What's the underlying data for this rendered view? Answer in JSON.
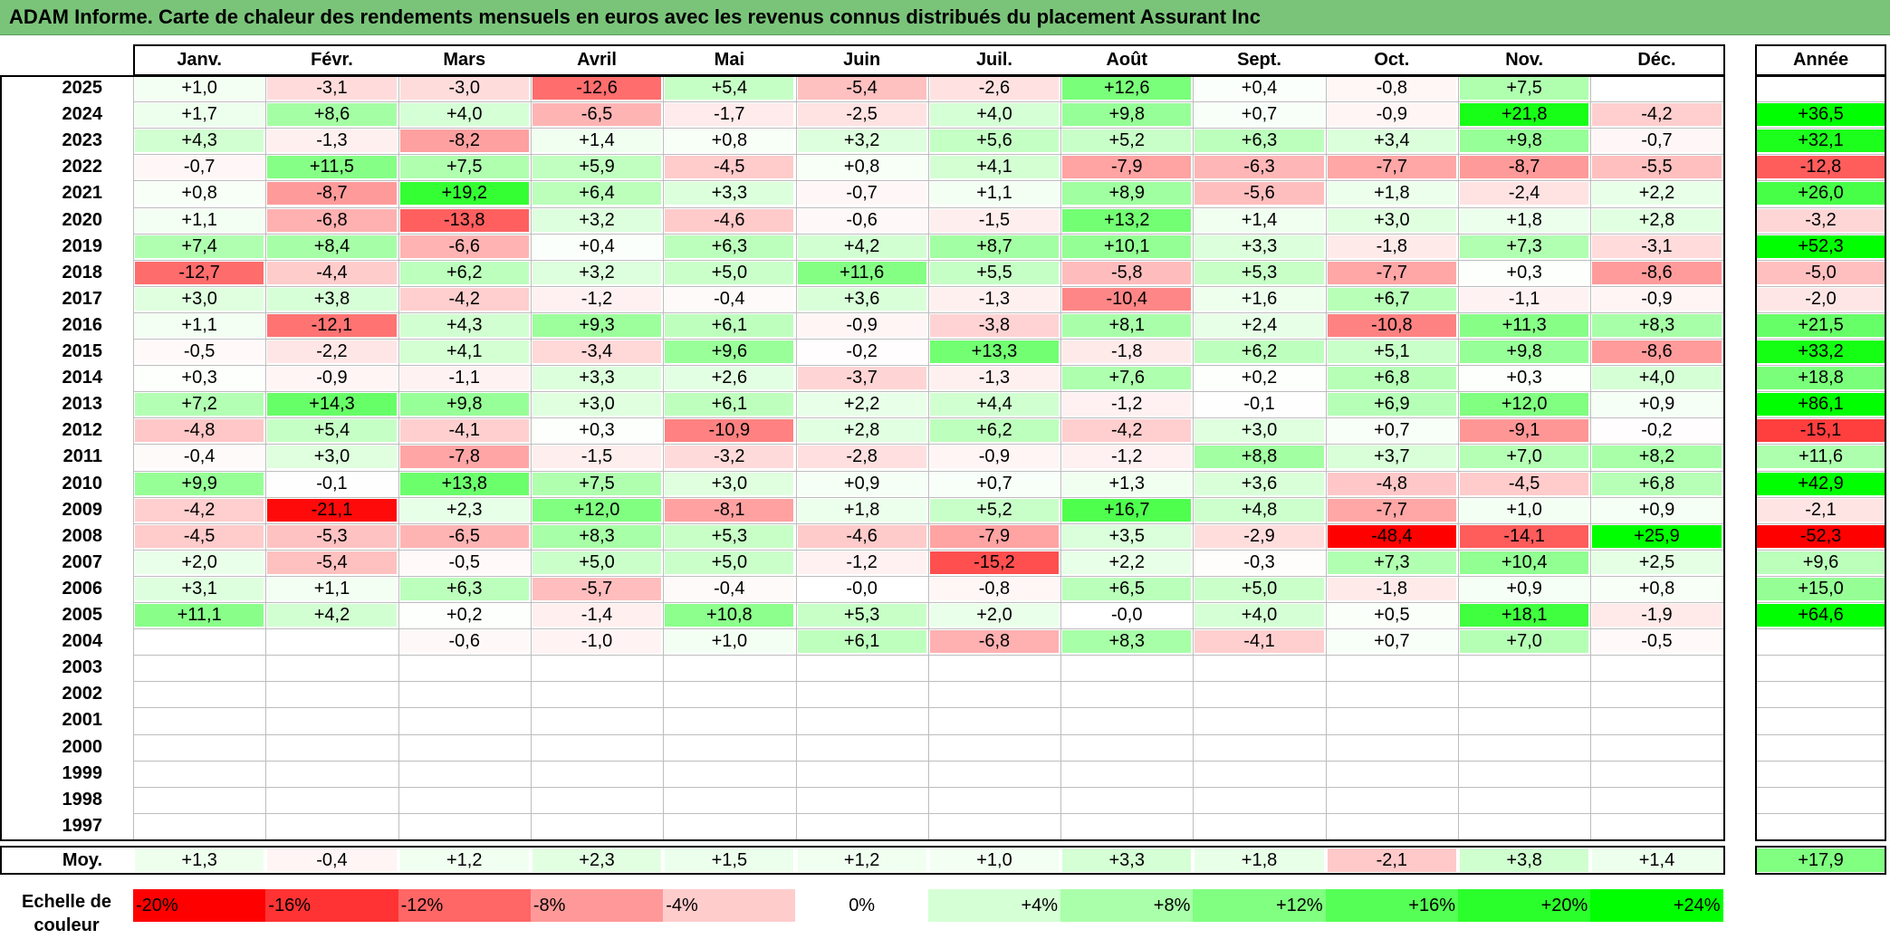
{
  "title": "ADAM Informe. Carte de chaleur des rendements mensuels en euros avec les revenus connus distribués du placement Assurant Inc",
  "chart_data": {
    "type": "heatmap",
    "months": [
      "Janv.",
      "Févr.",
      "Mars",
      "Avril",
      "Mai",
      "Juin",
      "Juil.",
      "Août",
      "Sept.",
      "Oct.",
      "Nov.",
      "Déc."
    ],
    "year_header": "Année",
    "rows": [
      {
        "year": "2025",
        "values": [
          "+1,0",
          "-3,1",
          "-3,0",
          "-12,6",
          "+5,4",
          "-5,4",
          "-2,6",
          "+12,6",
          "+0,4",
          "-0,8",
          "+7,5",
          ""
        ],
        "annual": ""
      },
      {
        "year": "2024",
        "values": [
          "+1,7",
          "+8,6",
          "+4,0",
          "-6,5",
          "-1,7",
          "-2,5",
          "+4,0",
          "+9,8",
          "+0,7",
          "-0,9",
          "+21,8",
          "-4,2"
        ],
        "annual": "+36,5"
      },
      {
        "year": "2023",
        "values": [
          "+4,3",
          "-1,3",
          "-8,2",
          "+1,4",
          "+0,8",
          "+3,2",
          "+5,6",
          "+5,2",
          "+6,3",
          "+3,4",
          "+9,8",
          "-0,7"
        ],
        "annual": "+32,1"
      },
      {
        "year": "2022",
        "values": [
          "-0,7",
          "+11,5",
          "+7,5",
          "+5,9",
          "-4,5",
          "+0,8",
          "+4,1",
          "-7,9",
          "-6,3",
          "-7,7",
          "-8,7",
          "-5,5"
        ],
        "annual": "-12,8"
      },
      {
        "year": "2021",
        "values": [
          "+0,8",
          "-8,7",
          "+19,2",
          "+6,4",
          "+3,3",
          "-0,7",
          "+1,1",
          "+8,9",
          "-5,6",
          "+1,8",
          "-2,4",
          "+2,2"
        ],
        "annual": "+26,0"
      },
      {
        "year": "2020",
        "values": [
          "+1,1",
          "-6,8",
          "-13,8",
          "+3,2",
          "-4,6",
          "-0,6",
          "-1,5",
          "+13,2",
          "+1,4",
          "+3,0",
          "+1,8",
          "+2,8"
        ],
        "annual": "-3,2"
      },
      {
        "year": "2019",
        "values": [
          "+7,4",
          "+8,4",
          "-6,6",
          "+0,4",
          "+6,3",
          "+4,2",
          "+8,7",
          "+10,1",
          "+3,3",
          "-1,8",
          "+7,3",
          "-3,1"
        ],
        "annual": "+52,3"
      },
      {
        "year": "2018",
        "values": [
          "-12,7",
          "-4,4",
          "+6,2",
          "+3,2",
          "+5,0",
          "+11,6",
          "+5,5",
          "-5,8",
          "+5,3",
          "-7,7",
          "+0,3",
          "-8,6"
        ],
        "annual": "-5,0"
      },
      {
        "year": "2017",
        "values": [
          "+3,0",
          "+3,8",
          "-4,2",
          "-1,2",
          "-0,4",
          "+3,6",
          "-1,3",
          "-10,4",
          "+1,6",
          "+6,7",
          "-1,1",
          "-0,9"
        ],
        "annual": "-2,0"
      },
      {
        "year": "2016",
        "values": [
          "+1,1",
          "-12,1",
          "+4,3",
          "+9,3",
          "+6,1",
          "-0,9",
          "-3,8",
          "+8,1",
          "+2,4",
          "-10,8",
          "+11,3",
          "+8,3"
        ],
        "annual": "+21,5"
      },
      {
        "year": "2015",
        "values": [
          "-0,5",
          "-2,2",
          "+4,1",
          "-3,4",
          "+9,6",
          "-0,2",
          "+13,3",
          "-1,8",
          "+6,2",
          "+5,1",
          "+9,8",
          "-8,6"
        ],
        "annual": "+33,2"
      },
      {
        "year": "2014",
        "values": [
          "+0,3",
          "-0,9",
          "-1,1",
          "+3,3",
          "+2,6",
          "-3,7",
          "-1,3",
          "+7,6",
          "+0,2",
          "+6,8",
          "+0,3",
          "+4,0"
        ],
        "annual": "+18,8"
      },
      {
        "year": "2013",
        "values": [
          "+7,2",
          "+14,3",
          "+9,8",
          "+3,0",
          "+6,1",
          "+2,2",
          "+4,4",
          "-1,2",
          "-0,1",
          "+6,9",
          "+12,0",
          "+0,9"
        ],
        "annual": "+86,1"
      },
      {
        "year": "2012",
        "values": [
          "-4,8",
          "+5,4",
          "-4,1",
          "+0,3",
          "-10,9",
          "+2,8",
          "+6,2",
          "-4,2",
          "+3,0",
          "+0,7",
          "-9,1",
          "-0,2"
        ],
        "annual": "-15,1"
      },
      {
        "year": "2011",
        "values": [
          "-0,4",
          "+3,0",
          "-7,8",
          "-1,5",
          "-3,2",
          "-2,8",
          "-0,9",
          "-1,2",
          "+8,8",
          "+3,7",
          "+7,0",
          "+8,2"
        ],
        "annual": "+11,6"
      },
      {
        "year": "2010",
        "values": [
          "+9,9",
          "-0,1",
          "+13,8",
          "+7,5",
          "+3,0",
          "+0,9",
          "+0,7",
          "+1,3",
          "+3,6",
          "-4,8",
          "-4,5",
          "+6,8"
        ],
        "annual": "+42,9"
      },
      {
        "year": "2009",
        "values": [
          "-4,2",
          "-21,1",
          "+2,3",
          "+12,0",
          "-8,1",
          "+1,8",
          "+5,2",
          "+16,7",
          "+4,8",
          "-7,7",
          "+1,0",
          "+0,9"
        ],
        "annual": "-2,1"
      },
      {
        "year": "2008",
        "values": [
          "-4,5",
          "-5,3",
          "-6,5",
          "+8,3",
          "+5,3",
          "-4,6",
          "-7,9",
          "+3,5",
          "-2,9",
          "-48,4",
          "-14,1",
          "+25,9"
        ],
        "annual": "-52,3"
      },
      {
        "year": "2007",
        "values": [
          "+2,0",
          "-5,4",
          "-0,5",
          "+5,0",
          "+5,0",
          "-1,2",
          "-15,2",
          "+2,2",
          "-0,3",
          "+7,3",
          "+10,4",
          "+2,5"
        ],
        "annual": "+9,6"
      },
      {
        "year": "2006",
        "values": [
          "+3,1",
          "+1,1",
          "+6,3",
          "-5,7",
          "-0,4",
          "-0,0",
          "-0,8",
          "+6,5",
          "+5,0",
          "-1,8",
          "+0,9",
          "+0,8"
        ],
        "annual": "+15,0"
      },
      {
        "year": "2005",
        "values": [
          "+11,1",
          "+4,2",
          "+0,2",
          "-1,4",
          "+10,8",
          "+5,3",
          "+2,0",
          "-0,0",
          "+4,0",
          "+0,5",
          "+18,1",
          "-1,9"
        ],
        "annual": "+64,6"
      },
      {
        "year": "2004",
        "values": [
          "",
          "",
          "-0,6",
          "-1,0",
          "+1,0",
          "+6,1",
          "-6,8",
          "+8,3",
          "-4,1",
          "+0,7",
          "+7,0",
          "-0,5"
        ],
        "annual": ""
      },
      {
        "year": "2003",
        "values": [
          "",
          "",
          "",
          "",
          "",
          "",
          "",
          "",
          "",
          "",
          "",
          ""
        ],
        "annual": ""
      },
      {
        "year": "2002",
        "values": [
          "",
          "",
          "",
          "",
          "",
          "",
          "",
          "",
          "",
          "",
          "",
          ""
        ],
        "annual": ""
      },
      {
        "year": "2001",
        "values": [
          "",
          "",
          "",
          "",
          "",
          "",
          "",
          "",
          "",
          "",
          "",
          ""
        ],
        "annual": ""
      },
      {
        "year": "2000",
        "values": [
          "",
          "",
          "",
          "",
          "",
          "",
          "",
          "",
          "",
          "",
          "",
          ""
        ],
        "annual": ""
      },
      {
        "year": "1999",
        "values": [
          "",
          "",
          "",
          "",
          "",
          "",
          "",
          "",
          "",
          "",
          "",
          ""
        ],
        "annual": ""
      },
      {
        "year": "1998",
        "values": [
          "",
          "",
          "",
          "",
          "",
          "",
          "",
          "",
          "",
          "",
          "",
          ""
        ],
        "annual": ""
      },
      {
        "year": "1997",
        "values": [
          "",
          "",
          "",
          "",
          "",
          "",
          "",
          "",
          "",
          "",
          "",
          ""
        ],
        "annual": ""
      }
    ],
    "average": {
      "label": "Moy.",
      "values": [
        "+1,3",
        "-0,4",
        "+1,2",
        "+2,3",
        "+1,5",
        "+1,2",
        "+1,0",
        "+3,3",
        "+1,8",
        "-2,1",
        "+3,8",
        "+1,4"
      ],
      "annual": "+17,9"
    },
    "color_scale": {
      "label": "Echelle de couleur",
      "steps": [
        "-20%",
        "-16%",
        "-12%",
        "-8%",
        "-4%",
        "0%",
        "+4%",
        "+8%",
        "+12%",
        "+16%",
        "+20%",
        "+24%"
      ],
      "step_values": [
        -20,
        -16,
        -12,
        -8,
        -4,
        0,
        4,
        8,
        12,
        16,
        20,
        24
      ],
      "negative_color": "#ff0000",
      "positive_color": "#00ff00",
      "neutral_color": "#ffffff"
    }
  }
}
